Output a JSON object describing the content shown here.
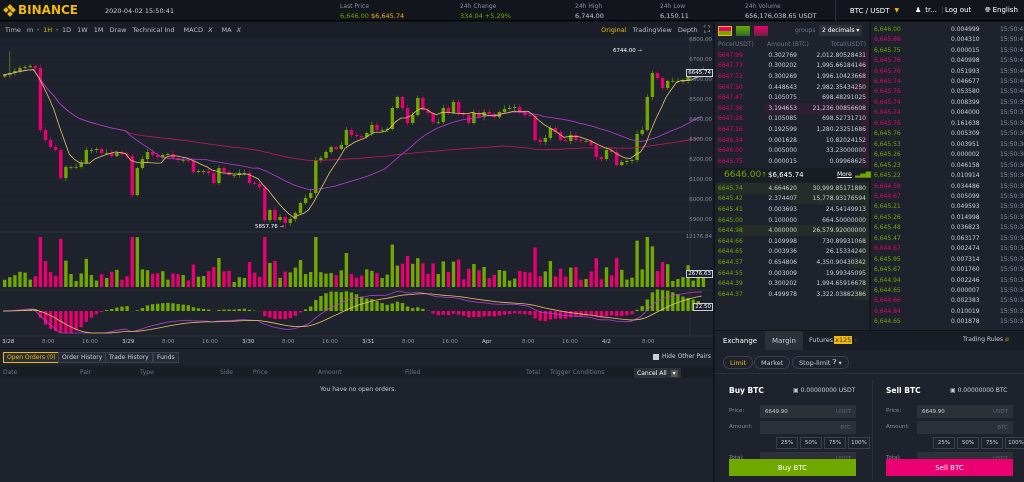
{
  "header": {
    "brand": "BINANCE",
    "datetime": "2020-04-02 15:50:41",
    "last_price_label": "Last Price",
    "last_price": "6,646.00",
    "last_price_usd": "$6,645.74",
    "change_label": "24h Change",
    "change": "334.04 +5.29%",
    "high_label": "24h High",
    "high": "6,744.00",
    "low_label": "24h Low",
    "low": "6,150.11",
    "volume_label": "24h Volume",
    "volume": "656,176,038.65 USDT",
    "pair": "BTC / USDT",
    "user": "tr...",
    "logout": "Log out",
    "language": "English"
  },
  "toolbar": {
    "items": [
      "Time",
      "m",
      "1H",
      "1D",
      "1W",
      "1M",
      "Draw",
      "Technical Ind"
    ],
    "active": "1H",
    "indicators": [
      "MACD",
      "MA"
    ],
    "views": [
      "Original",
      "TradingView",
      "Depth"
    ],
    "active_view": "Original"
  },
  "chart_data": {
    "type": "candlestick",
    "interval": "1H",
    "closes": [
      6625,
      6635,
      6645,
      6660,
      6665,
      6670,
      6660,
      6350,
      6300,
      6265,
      6250,
      6110,
      6165,
      6165,
      6165,
      6185,
      6250,
      6250,
      6255,
      6235,
      6235,
      6220,
      6235,
      6230,
      6220,
      6025,
      6160,
      6205,
      6240,
      6225,
      6215,
      6225,
      6230,
      6210,
      6200,
      6200,
      6195,
      6140,
      6145,
      6145,
      6135,
      6085,
      6160,
      6140,
      6125,
      6125,
      6135,
      6135,
      6085,
      6080,
      6065,
      5900,
      5950,
      5900,
      5915,
      5885,
      5905,
      5935,
      5985,
      6010,
      6035,
      6200,
      6210,
      6240,
      6265,
      6255,
      6275,
      6350,
      6325,
      6320,
      6315,
      6335,
      6375,
      6350,
      6350,
      6355,
      6460,
      6515,
      6460,
      6385,
      6425,
      6510,
      6450,
      6435,
      6390,
      6390,
      6460,
      6435,
      6490,
      6435,
      6425,
      6385,
      6435,
      6415,
      6440,
      6430,
      6415,
      6440,
      6455,
      6460,
      6465,
      6440,
      6425,
      6420,
      6300,
      6290,
      6310,
      6360,
      6340,
      6300,
      6295,
      6325,
      6300,
      6295,
      6295,
      6275,
      6215,
      6205,
      6250,
      6240,
      6175,
      6190,
      6195,
      6200,
      6330,
      6350,
      6515,
      6635,
      6610,
      6560,
      6595,
      6595,
      6595,
      6595,
      6630,
      6635,
      6645,
      6645.74
    ],
    "high_mark": "6744.00",
    "low_mark": "5857.76",
    "y_ticks": [
      "6800.00",
      "6700.00",
      "6600.00",
      "6500.00",
      "6400.00",
      "6300.00",
      "6200.00",
      "6100.00",
      "6000.00",
      "5900.00"
    ],
    "x_ticks": [
      "3/28",
      "8:00",
      "16:00",
      "3/29",
      "8:00",
      "16:00",
      "3/30",
      "8:00",
      "16:00",
      "3/31",
      "8:00",
      "16:00",
      "Apr",
      "8:00",
      "16:00",
      "4/2",
      "8:00"
    ],
    "current_price": "6645.74",
    "volume_max": "12176.84",
    "volume_current": "2676.63",
    "macd_value": "22.50",
    "ma_periods": [
      7,
      25,
      99
    ],
    "colors": {
      "up": "#70a800",
      "down": "#ea0070",
      "ma7": "#e8c46a",
      "ma25": "#b13fd0",
      "ma99": "#c2185b"
    }
  },
  "orders": {
    "tabs": [
      "Open Orders (0)",
      "Order History",
      "Trade History",
      "Funds"
    ],
    "hide_other_pairs": "Hide Other Pairs",
    "columns": [
      "Date",
      "Pair",
      "Type",
      "Side",
      "Price",
      "Amount",
      "Filled",
      "Total",
      "Trigger Conditions"
    ],
    "cancel_all": "Cancel All",
    "empty": "You have no open orders."
  },
  "orderbook": {
    "groups_label": "groups",
    "groups": "2 decimals",
    "headers": [
      "Price(USDT)",
      "Amount (BTC)",
      "Total(USDT)"
    ],
    "asks": [
      [
        "6647.99",
        "0.302769",
        "2,012.80528431"
      ],
      [
        "6647.73",
        "0.300202",
        "1,995.66184146"
      ],
      [
        "6647.72",
        "0.300269",
        "1,996.10423668"
      ],
      [
        "6647.50",
        "0.448643",
        "2,982.35434250"
      ],
      [
        "6647.47",
        "0.105075",
        "698.48291025"
      ],
      [
        "6647.36",
        "3.194653",
        "21,236.00856608"
      ],
      [
        "6647.26",
        "0.105085",
        "698.52731710"
      ],
      [
        "6647.16",
        "0.192599",
        "1,280.23251686"
      ],
      [
        "6646.34",
        "0.001628",
        "10.82024152"
      ],
      [
        "6646.00",
        "0.005000",
        "33.23000000"
      ],
      [
        "6645.75",
        "0.000015",
        "0.09968625"
      ]
    ],
    "last": "6646.00",
    "last_arrow": "↑",
    "last_usd": "$6,645.74",
    "more": "More",
    "bids": [
      [
        "6645.74",
        "4.664620",
        "30,999.85171880"
      ],
      [
        "6645.42",
        "2.374407",
        "15,778.93176594"
      ],
      [
        "6645.41",
        "0.003693",
        "24.54149913"
      ],
      [
        "6645.00",
        "0.100000",
        "664.50000000"
      ],
      [
        "6644.98",
        "4.000000",
        "26,579.92000000"
      ],
      [
        "6644.66",
        "0.109998",
        "730.89931068"
      ],
      [
        "6644.65",
        "0.003936",
        "26.15334240"
      ],
      [
        "6644.57",
        "0.654806",
        "4,350.90430342"
      ],
      [
        "6644.55",
        "0.003009",
        "19.99345095"
      ],
      [
        "6644.39",
        "0.300202",
        "1,994.65916678"
      ],
      [
        "6644.37",
        "0.499978",
        "3,322.03882386"
      ]
    ]
  },
  "trades": [
    [
      "6,646.00",
      "0.004999",
      "15:50:41",
      "buy"
    ],
    [
      "6,645.86",
      "0.004310",
      "15:50:41",
      "sell"
    ],
    [
      "6,645.75",
      "0.000015",
      "15:50:41",
      "buy"
    ],
    [
      "6,645.76",
      "0.040998",
      "15:50:41",
      "sell"
    ],
    [
      "6,645.76",
      "0.051993",
      "15:50:40",
      "sell"
    ],
    [
      "6,645.74",
      "0.046677",
      "15:50:40",
      "sell"
    ],
    [
      "6,645.76",
      "0.053580",
      "15:50:40",
      "sell"
    ],
    [
      "6,645.74",
      "0.008399",
      "15:50:39",
      "sell"
    ],
    [
      "6,645.74",
      "0.004000",
      "15:50:37",
      "sell"
    ],
    [
      "6,645.76",
      "0.161638",
      "15:50:36",
      "sell"
    ],
    [
      "6,645.76",
      "0.005309",
      "15:50:36",
      "buy"
    ],
    [
      "6,645.53",
      "0.003951",
      "15:50:36",
      "buy"
    ],
    [
      "6,645.26",
      "0.000002",
      "15:50:36",
      "buy"
    ],
    [
      "6,645.23",
      "0.046158",
      "15:50:36",
      "buy"
    ],
    [
      "6,645.22",
      "0.010914",
      "15:50:36",
      "buy"
    ],
    [
      "6,644.58",
      "0.034486",
      "15:50:35",
      "sell"
    ],
    [
      "6,644.67",
      "0.005099",
      "15:50:35",
      "sell"
    ],
    [
      "6,645.21",
      "0.049593",
      "15:50:35",
      "buy"
    ],
    [
      "6,645.26",
      "0.014998",
      "15:50:35",
      "buy"
    ],
    [
      "6,645.48",
      "0.036823",
      "15:50:34",
      "buy"
    ],
    [
      "6,645.47",
      "0.063177",
      "15:50:34",
      "buy"
    ],
    [
      "6,644.67",
      "0.002474",
      "15:50:34",
      "sell"
    ],
    [
      "6,645.95",
      "0.007314",
      "15:50:34",
      "buy"
    ],
    [
      "6,645.67",
      "0.001760",
      "15:50:34",
      "buy"
    ],
    [
      "6,644.94",
      "0.002246",
      "15:50:34",
      "buy"
    ],
    [
      "6,644.65",
      "0.000007",
      "15:50:34",
      "buy"
    ],
    [
      "6,644.66",
      "0.002383",
      "15:50:34",
      "sell"
    ],
    [
      "6,644.84",
      "0.010019",
      "15:50:33",
      "sell"
    ],
    [
      "6,644.65",
      "0.001878",
      "15:50:33",
      "buy"
    ]
  ],
  "trade_panel": {
    "tabs": [
      "Exchange",
      "Margin",
      "Futures"
    ],
    "futures_badge": "x125",
    "rules": "Trading Rules",
    "order_types": [
      "Limit",
      "Market",
      "Stop-limit"
    ],
    "buy": {
      "title": "Buy BTC",
      "balance": "0.00000000 USDT",
      "price": "6649.90",
      "price_unit": "USDT",
      "amount_unit": "BTC",
      "total_unit": "USDT",
      "button": "Buy BTC"
    },
    "sell": {
      "title": "Sell BTC",
      "balance": "0.00000000 BTC",
      "price": "6649.90",
      "price_unit": "USDT",
      "amount_unit": "BTC",
      "total_unit": "USDT",
      "button": "Sell BTC"
    },
    "labels": {
      "price": "Price:",
      "amount": "Amount:",
      "total": "Total:"
    },
    "percents": [
      "25%",
      "50%",
      "75%",
      "100%"
    ]
  }
}
